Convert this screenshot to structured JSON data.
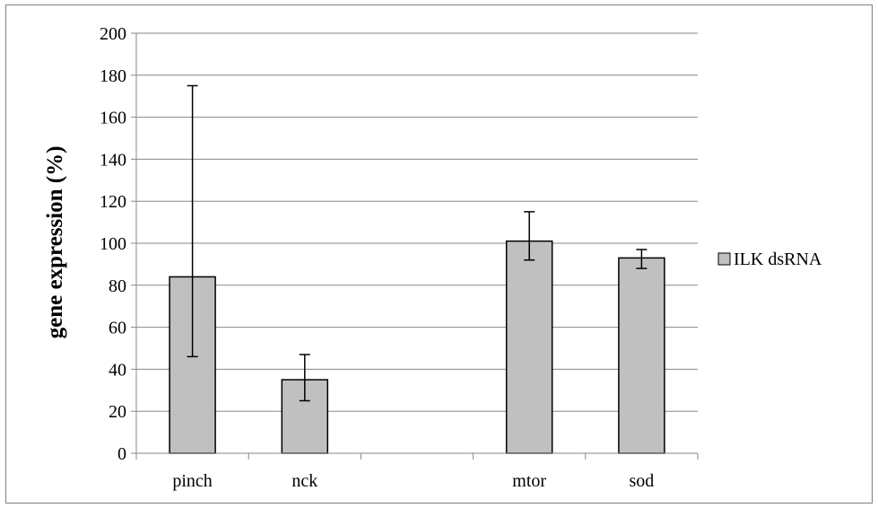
{
  "chart_data": {
    "type": "bar",
    "title": "",
    "xlabel": "",
    "ylabel": "gene expression (%)",
    "ylim": [
      0,
      200
    ],
    "yticks": [
      0,
      20,
      40,
      60,
      80,
      100,
      120,
      140,
      160,
      180,
      200
    ],
    "grid": true,
    "legend_position": "right",
    "categories": [
      "pinch",
      "nck",
      "",
      "mtor",
      "sod"
    ],
    "series": [
      {
        "name": "ILK dsRNA",
        "color": "#c0c0c0",
        "values": [
          84,
          35,
          null,
          101,
          93
        ],
        "error_low": [
          46,
          25,
          null,
          92,
          88
        ],
        "error_high": [
          175,
          47,
          null,
          115,
          97
        ]
      }
    ]
  }
}
